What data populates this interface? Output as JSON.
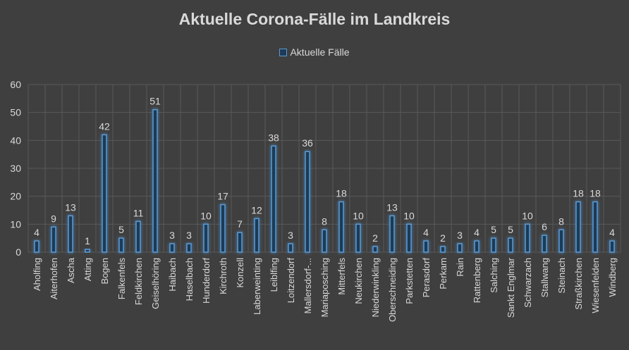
{
  "chart_data": {
    "type": "bar",
    "title": "Aktuelle Corona-Fälle im Landkreis",
    "xlabel": "",
    "ylabel": "",
    "ylim": [
      0,
      60
    ],
    "yticks": [
      0,
      10,
      20,
      30,
      40,
      50,
      60
    ],
    "grid": true,
    "legend_position": "top",
    "colors": {
      "background": "#3f3f3f",
      "bar_edge": "#5b9bd5",
      "bar_fill": "#1f3a56",
      "grid": "#595959",
      "text": "#d9d9d9"
    },
    "categories": [
      "Aholfing",
      "Aiterhofen",
      "Ascha",
      "Atting",
      "Bogen",
      "Falkenfels",
      "Feldkirchen",
      "Geiselhöring",
      "Haibach",
      "Haselbach",
      "Hunderdorf",
      "Kirchroth",
      "Konzell",
      "Laberweinting",
      "Leiblfing",
      "Loitzendorf",
      "Mallersdorf-...",
      "Mariaposching",
      "Mitterfels",
      "Neukirchen",
      "Niederwinkling",
      "Oberschneiding",
      "Parkstetten",
      "Perasdorf",
      "Perkam",
      "Rain",
      "Rattenberg",
      "Salching",
      "Sankt Englmar",
      "Schwarzach",
      "Stallwang",
      "Steinach",
      "Straßkirchen",
      "Wiesenfelden",
      "Windberg"
    ],
    "series": [
      {
        "name": "Aktuelle Fälle",
        "values": [
          4,
          9,
          13,
          1,
          42,
          5,
          11,
          51,
          3,
          3,
          10,
          17,
          7,
          12,
          38,
          3,
          36,
          8,
          18,
          10,
          2,
          13,
          10,
          4,
          2,
          3,
          4,
          5,
          5,
          10,
          6,
          8,
          18,
          18,
          4
        ]
      }
    ]
  }
}
